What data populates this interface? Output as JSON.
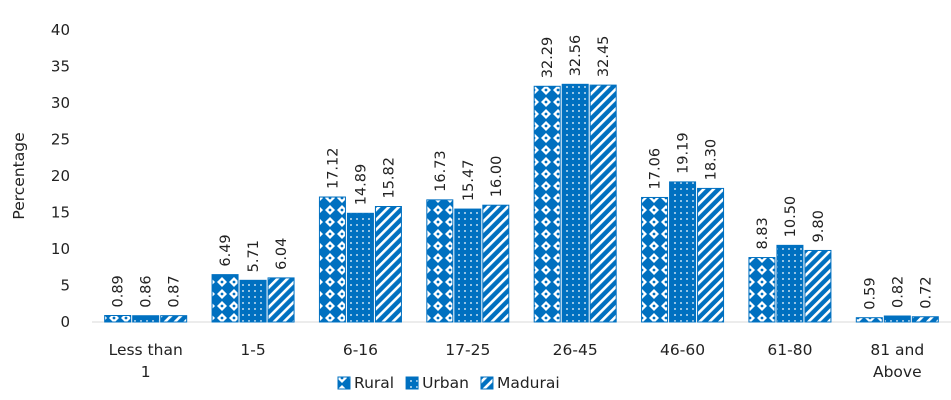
{
  "chart_data": {
    "type": "bar",
    "title": "",
    "xlabel": "",
    "ylabel": "Percentage",
    "ylim": [
      0,
      40
    ],
    "yticks": [
      0,
      5,
      10,
      15,
      20,
      25,
      30,
      35,
      40
    ],
    "grid": false,
    "legend_position": "bottom",
    "categories": [
      [
        "Less than",
        "1"
      ],
      [
        "1-5"
      ],
      [
        "6-16"
      ],
      [
        "17-25"
      ],
      [
        "26-45"
      ],
      [
        "46-60"
      ],
      [
        "61-80"
      ],
      [
        "81 and",
        "Above"
      ]
    ],
    "series": [
      {
        "name": "Rural",
        "pattern": "diamond",
        "values": [
          0.89,
          6.49,
          17.12,
          16.73,
          32.29,
          17.06,
          8.83,
          0.59
        ],
        "labels": [
          "0.89",
          "6.49",
          "17.12",
          "16.73",
          "32.29",
          "17.06",
          "8.83",
          "0.59"
        ]
      },
      {
        "name": "Urban",
        "pattern": "dots",
        "values": [
          0.86,
          5.71,
          14.89,
          15.47,
          32.56,
          19.19,
          10.5,
          0.82
        ],
        "labels": [
          "0.86",
          "5.71",
          "14.89",
          "15.47",
          "32.56",
          "19.19",
          "10.50",
          "0.82"
        ]
      },
      {
        "name": "Madurai",
        "pattern": "diagonal-stripes",
        "values": [
          0.87,
          6.04,
          15.82,
          16.0,
          32.45,
          18.3,
          9.8,
          0.72
        ],
        "labels": [
          "0.87",
          "6.04",
          "15.82",
          "16.00",
          "32.45",
          "18.30",
          "9.80",
          "0.72"
        ]
      }
    ],
    "colors": {
      "bar": "#0070C0",
      "text": "#222222",
      "axis": "#d9d9d9"
    }
  }
}
